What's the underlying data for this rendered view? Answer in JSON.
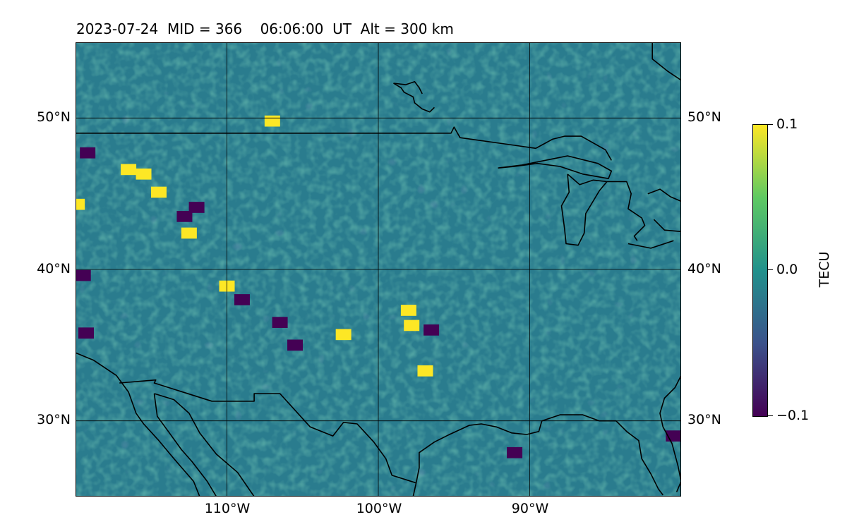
{
  "title": "2023-07-24  MID = 366    06:06:00  UT  Alt = 300 km",
  "map": {
    "projection": "plate-carree",
    "lon_range": [
      -120,
      -80
    ],
    "lat_range": [
      25,
      55
    ],
    "field": "TEC perturbation (detrended)",
    "features": [
      "coastlines",
      "US-Canada border",
      "US-Mexico border",
      "Great Lakes"
    ],
    "gridlines": true
  },
  "lat_ticks": [
    {
      "value": 30,
      "label": "30°N"
    },
    {
      "value": 40,
      "label": "40°N"
    },
    {
      "value": 50,
      "label": "50°N"
    }
  ],
  "lon_ticks": [
    {
      "value": -110,
      "label": "110°W"
    },
    {
      "value": -100,
      "label": "100°W"
    },
    {
      "value": -90,
      "label": "90°W"
    }
  ],
  "colorbar": {
    "label": "TECU",
    "colormap": "viridis",
    "min": -0.1,
    "max": 0.1,
    "ticks": [
      {
        "value": 0.1,
        "label": "0.1"
      },
      {
        "value": 0.0,
        "label": "0.0"
      },
      {
        "value": -0.1,
        "label": "−0.1"
      }
    ],
    "colors": [
      "#440154",
      "#3b528b",
      "#21918c",
      "#5ec962",
      "#fde725"
    ]
  },
  "anomalies": {
    "positive": [
      {
        "lon": -114.5,
        "lat": 45.1
      },
      {
        "lon": -116.5,
        "lat": 46.6
      },
      {
        "lon": -115.5,
        "lat": 46.3
      },
      {
        "lon": -112.5,
        "lat": 42.4
      },
      {
        "lon": -110.0,
        "lat": 38.9
      },
      {
        "lon": -102.3,
        "lat": 35.7
      },
      {
        "lon": -97.8,
        "lat": 36.3
      },
      {
        "lon": -98.0,
        "lat": 37.3
      },
      {
        "lon": -96.9,
        "lat": 33.3
      },
      {
        "lon": -119.9,
        "lat": 44.3
      },
      {
        "lon": -107.0,
        "lat": 49.8
      }
    ],
    "negative": [
      {
        "lon": -119.2,
        "lat": 47.7
      },
      {
        "lon": -112.8,
        "lat": 43.5
      },
      {
        "lon": -112.0,
        "lat": 44.1
      },
      {
        "lon": -119.5,
        "lat": 39.6
      },
      {
        "lon": -119.3,
        "lat": 35.8
      },
      {
        "lon": -105.5,
        "lat": 35.0
      },
      {
        "lon": -106.5,
        "lat": 36.5
      },
      {
        "lon": -96.5,
        "lat": 36.0
      },
      {
        "lon": -91.0,
        "lat": 27.9
      },
      {
        "lon": -80.5,
        "lat": 29.0
      },
      {
        "lon": -109.0,
        "lat": 38.0
      }
    ]
  }
}
